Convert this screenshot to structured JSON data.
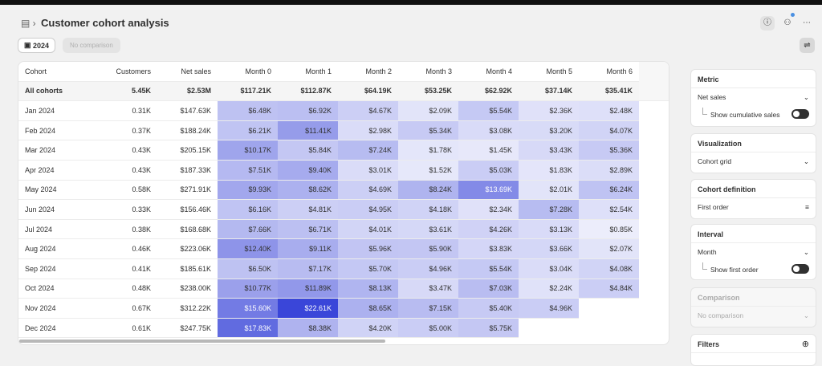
{
  "header": {
    "title": "Customer cohort analysis",
    "date": "2024",
    "comparison": "No comparison"
  },
  "table": {
    "columns": [
      "Cohort",
      "Customers",
      "Net sales",
      "Month 0",
      "Month 1",
      "Month 2",
      "Month 3",
      "Month 4",
      "Month 5",
      "Month 6"
    ],
    "rows": [
      [
        "All cohorts",
        "5.45K",
        "$2.53M",
        "$117.21K",
        "$112.87K",
        "$64.19K",
        "$53.25K",
        "$62.92K",
        "$37.14K",
        "$35.41K"
      ],
      [
        "Jan 2024",
        "0.31K",
        "$147.63K",
        "$6.48K",
        "$6.92K",
        "$4.67K",
        "$2.09K",
        "$5.54K",
        "$2.36K",
        "$2.48K"
      ],
      [
        "Feb 2024",
        "0.37K",
        "$188.24K",
        "$6.21K",
        "$11.41K",
        "$2.98K",
        "$5.34K",
        "$3.08K",
        "$3.20K",
        "$4.07K"
      ],
      [
        "Mar 2024",
        "0.43K",
        "$205.15K",
        "$10.17K",
        "$5.84K",
        "$7.24K",
        "$1.78K",
        "$1.45K",
        "$3.43K",
        "$5.36K"
      ],
      [
        "Apr 2024",
        "0.43K",
        "$187.33K",
        "$7.51K",
        "$9.40K",
        "$3.01K",
        "$1.52K",
        "$5.03K",
        "$1.83K",
        "$2.89K"
      ],
      [
        "May 2024",
        "0.58K",
        "$271.91K",
        "$9.93K",
        "$8.62K",
        "$4.69K",
        "$8.24K",
        "$13.69K",
        "$2.01K",
        "$6.24K"
      ],
      [
        "Jun 2024",
        "0.33K",
        "$156.46K",
        "$6.16K",
        "$4.81K",
        "$4.95K",
        "$4.18K",
        "$2.34K",
        "$7.28K",
        "$2.54K"
      ],
      [
        "Jul 2024",
        "0.38K",
        "$168.68K",
        "$7.66K",
        "$6.71K",
        "$4.01K",
        "$3.61K",
        "$4.26K",
        "$3.13K",
        "$0.85K"
      ],
      [
        "Aug 2024",
        "0.46K",
        "$223.06K",
        "$12.40K",
        "$9.11K",
        "$5.96K",
        "$5.90K",
        "$3.83K",
        "$3.66K",
        "$2.07K"
      ],
      [
        "Sep 2024",
        "0.41K",
        "$185.61K",
        "$6.50K",
        "$7.17K",
        "$5.70K",
        "$4.96K",
        "$5.54K",
        "$3.04K",
        "$4.08K"
      ],
      [
        "Oct 2024",
        "0.48K",
        "$238.00K",
        "$10.77K",
        "$11.89K",
        "$8.13K",
        "$3.47K",
        "$7.03K",
        "$2.24K",
        "$4.84K"
      ],
      [
        "Nov 2024",
        "0.67K",
        "$312.22K",
        "$15.60K",
        "$22.61K",
        "$8.65K",
        "$7.15K",
        "$5.40K",
        "$4.96K"
      ],
      [
        "Dec 2024",
        "0.61K",
        "$247.75K",
        "$17.83K",
        "$8.38K",
        "$4.20K",
        "$5.00K",
        "$5.75K"
      ]
    ]
  },
  "panel": {
    "sections": [
      {
        "title": "Metric",
        "select": "Net sales",
        "toggle": "Show cumulative sales"
      },
      {
        "title": "Visualization",
        "select": "Cohort grid"
      },
      {
        "title": "Cohort definition",
        "select": "First order"
      },
      {
        "title": "Interval",
        "select": "Month",
        "toggle": "Show first order"
      },
      {
        "title": "Comparison",
        "select": "No comparison"
      },
      {
        "title": "Filters"
      }
    ]
  }
}
